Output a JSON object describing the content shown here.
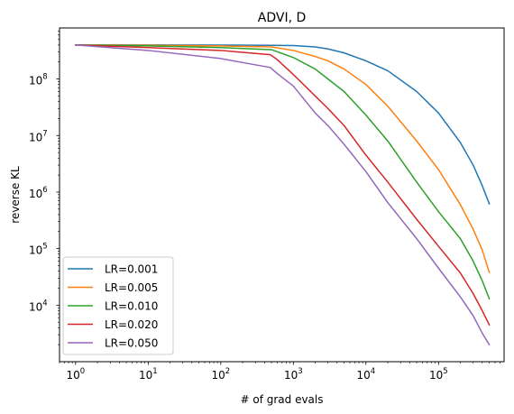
{
  "chart_data": {
    "type": "line",
    "title": "ADVI, D",
    "xlabel": "# of grad evals",
    "ylabel": "reverse KL",
    "xscale": "log",
    "yscale": "log",
    "xlim": [
      0.6,
      800000
    ],
    "ylim": [
      1000,
      800000000
    ],
    "x_ticks": [
      {
        "value": 1,
        "base": "10",
        "exp": "0"
      },
      {
        "value": 10,
        "base": "10",
        "exp": "1"
      },
      {
        "value": 100,
        "base": "10",
        "exp": "2"
      },
      {
        "value": 1000,
        "base": "10",
        "exp": "3"
      },
      {
        "value": 10000,
        "base": "10",
        "exp": "4"
      },
      {
        "value": 100000,
        "base": "10",
        "exp": "5"
      }
    ],
    "y_ticks": [
      {
        "value": 10000,
        "base": "10",
        "exp": "4"
      },
      {
        "value": 100000,
        "base": "10",
        "exp": "5"
      },
      {
        "value": 1000000,
        "base": "10",
        "exp": "6"
      },
      {
        "value": 10000000,
        "base": "10",
        "exp": "7"
      },
      {
        "value": 100000000,
        "base": "10",
        "exp": "8"
      }
    ],
    "grid": false,
    "legend_position": "lower left",
    "series": [
      {
        "name": "LR=0.001",
        "color": "#1f77b4",
        "points": [
          [
            1,
            400000000
          ],
          [
            10,
            400000000
          ],
          [
            100,
            398000000
          ],
          [
            500,
            395000000
          ],
          [
            1000,
            390000000
          ],
          [
            2000,
            370000000
          ],
          [
            3000,
            340000000
          ],
          [
            5000,
            290000000
          ],
          [
            10000,
            210000000
          ],
          [
            20000,
            140000000
          ],
          [
            50000,
            60000000
          ],
          [
            100000,
            25000000
          ],
          [
            200000,
            7500000
          ],
          [
            300000,
            3000000
          ],
          [
            400000,
            1300000
          ],
          [
            500000,
            620000
          ]
        ]
      },
      {
        "name": "LR=0.005",
        "color": "#ff7f0e",
        "points": [
          [
            1,
            400000000
          ],
          [
            10,
            395000000
          ],
          [
            100,
            385000000
          ],
          [
            500,
            370000000
          ],
          [
            1000,
            320000000
          ],
          [
            2000,
            250000000
          ],
          [
            3000,
            210000000
          ],
          [
            5000,
            150000000
          ],
          [
            10000,
            80000000
          ],
          [
            20000,
            33000000
          ],
          [
            50000,
            8000000
          ],
          [
            100000,
            2500000
          ],
          [
            200000,
            600000
          ],
          [
            300000,
            220000
          ],
          [
            400000,
            95000
          ],
          [
            500000,
            38000
          ]
        ]
      },
      {
        "name": "LR=0.010",
        "color": "#2ca02c",
        "points": [
          [
            1,
            400000000
          ],
          [
            10,
            385000000
          ],
          [
            100,
            360000000
          ],
          [
            500,
            330000000
          ],
          [
            1000,
            240000000
          ],
          [
            2000,
            150000000
          ],
          [
            3000,
            100000000
          ],
          [
            5000,
            60000000
          ],
          [
            10000,
            23000000
          ],
          [
            20000,
            8000000
          ],
          [
            50000,
            1500000
          ],
          [
            100000,
            450000
          ],
          [
            200000,
            150000
          ],
          [
            300000,
            60000
          ],
          [
            400000,
            27000
          ],
          [
            500000,
            13000
          ]
        ]
      },
      {
        "name": "LR=0.020",
        "color": "#d62728",
        "points": [
          [
            1,
            400000000
          ],
          [
            10,
            360000000
          ],
          [
            100,
            320000000
          ],
          [
            480,
            270000000
          ],
          [
            600,
            220000000
          ],
          [
            1000,
            120000000
          ],
          [
            2000,
            50000000
          ],
          [
            3000,
            30000000
          ],
          [
            5000,
            15000000
          ],
          [
            10000,
            4500000
          ],
          [
            20000,
            1500000
          ],
          [
            50000,
            330000
          ],
          [
            100000,
            110000
          ],
          [
            200000,
            37000
          ],
          [
            300000,
            16000
          ],
          [
            400000,
            8000
          ],
          [
            500000,
            4500
          ]
        ]
      },
      {
        "name": "LR=0.050",
        "color": "#9467bd",
        "points": [
          [
            1,
            400000000
          ],
          [
            10,
            320000000
          ],
          [
            100,
            230000000
          ],
          [
            480,
            160000000
          ],
          [
            600,
            125000000
          ],
          [
            1000,
            75000000
          ],
          [
            2000,
            25000000
          ],
          [
            3000,
            15000000
          ],
          [
            5000,
            7000000
          ],
          [
            10000,
            2300000
          ],
          [
            20000,
            650000
          ],
          [
            50000,
            150000
          ],
          [
            100000,
            45000
          ],
          [
            200000,
            14000
          ],
          [
            300000,
            6500
          ],
          [
            400000,
            3200
          ],
          [
            500000,
            2000
          ]
        ]
      }
    ]
  }
}
